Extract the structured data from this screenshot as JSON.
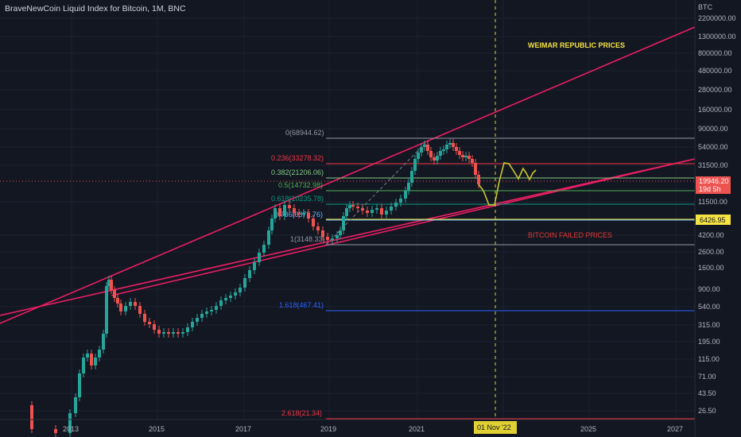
{
  "header": {
    "title": "BraveNewCoin Liquid Index for Bitcoin, 1M, BNC"
  },
  "price_axis": {
    "currency": "BTC",
    "labels": [
      "2200000.00",
      "1300000.00",
      "800000.00",
      "480000.00",
      "280000.00",
      "160000.00",
      "90000.00",
      "54000.00",
      "31500.00",
      "11500.00",
      "4200.00",
      "2600.00",
      "1600.00",
      "900.00",
      "540.00",
      "315.00",
      "195.00",
      "115.00",
      "71.00",
      "43.50",
      "26.50"
    ],
    "current_price": "19946.20",
    "countdown": "19d 5h",
    "marker_price": "6426.95"
  },
  "time_axis": {
    "labels": [
      "2013",
      "2015",
      "2017",
      "2019",
      "2021",
      "2023",
      "2025",
      "2027"
    ],
    "cursor_label": "01 Nov '22"
  },
  "fib_levels": [
    {
      "label": "0(68944.62)",
      "color": "#9598a1"
    },
    {
      "label": "0.236(33278.32)",
      "color": "#f23645"
    },
    {
      "label": "0.382(21206.06)",
      "color": "#81c784"
    },
    {
      "label": "0.5(14732.98)",
      "color": "#4caf50"
    },
    {
      "label": "0.618(10235.78)",
      "color": "#089981"
    },
    {
      "label": "0.786(6375.76)",
      "color": "#64b5f6"
    },
    {
      "label": "1(3148.33)",
      "color": "#9598a1"
    },
    {
      "label": "1.618(467.41)",
      "color": "#2962ff"
    },
    {
      "label": "2.618(21.34)",
      "color": "#f23645"
    }
  ],
  "annotations": {
    "weimar": "WEIMAR REPUBLIC PRICES",
    "failed": "BITCOIN FAILED PRICES"
  },
  "colors": {
    "up": "#26a69a",
    "down": "#ef5350",
    "trend": "#e91e63",
    "projection": "#c8c82a",
    "cursor": "#e0d034"
  }
}
